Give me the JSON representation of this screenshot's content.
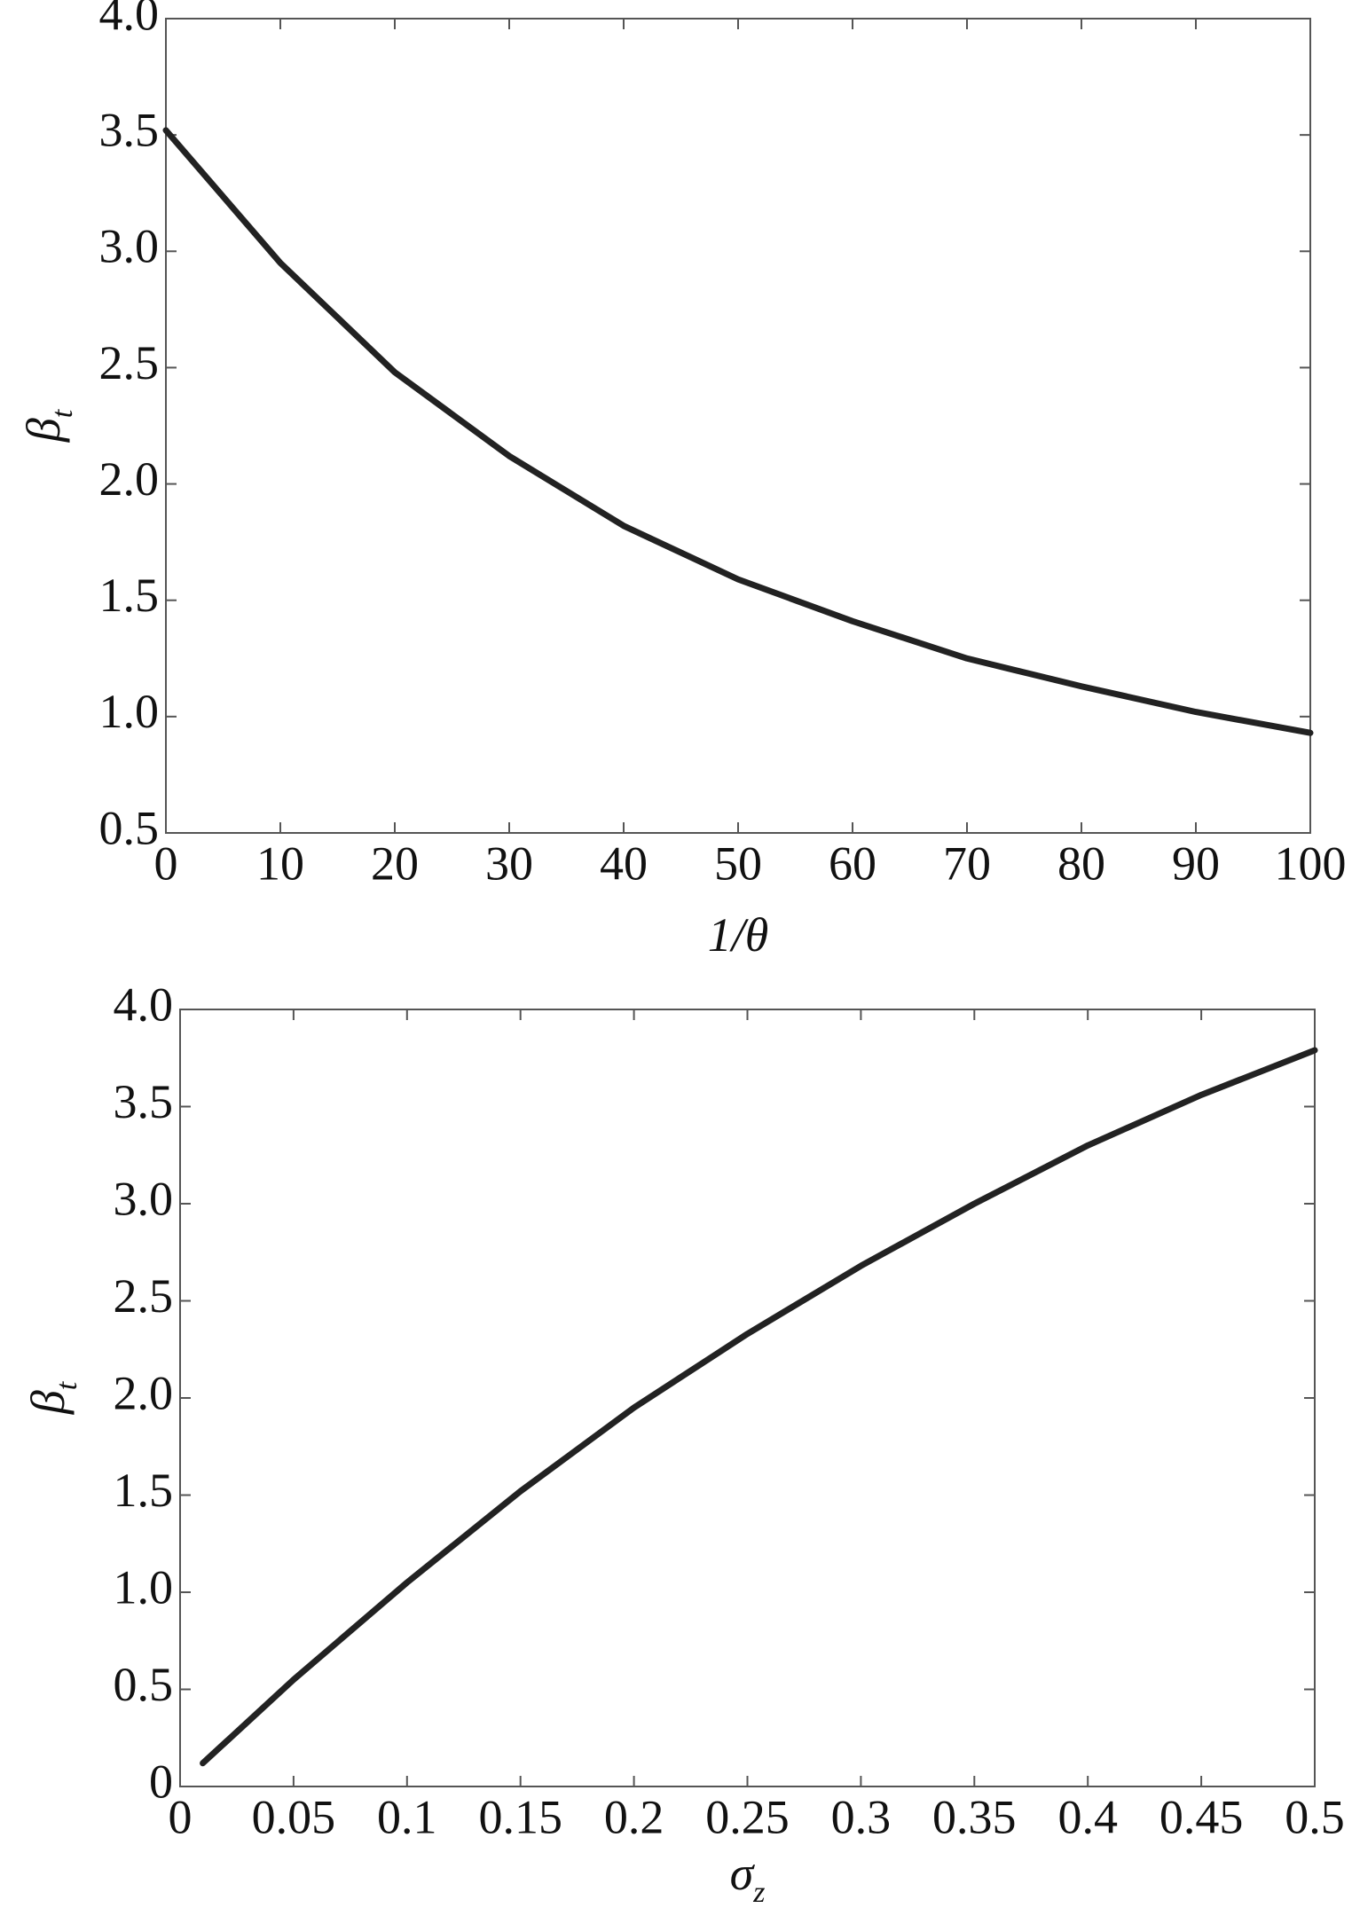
{
  "chart_data": [
    {
      "type": "line",
      "x_label": "1/θ",
      "y_label": "β",
      "y_label_sub": "t",
      "x": [
        0,
        10,
        20,
        30,
        40,
        50,
        60,
        70,
        80,
        90,
        100
      ],
      "series": [
        {
          "color": "#222222",
          "values": [
            3.52,
            2.95,
            2.48,
            2.12,
            1.82,
            1.59,
            1.41,
            1.25,
            1.13,
            1.02,
            0.93
          ]
        }
      ],
      "xlim": [
        0,
        100
      ],
      "xticks": [
        0,
        10,
        20,
        30,
        40,
        50,
        60,
        70,
        80,
        90,
        100
      ],
      "ylim": [
        0.5,
        4
      ],
      "yticks": [
        0.5,
        {
          "value": 1,
          "label": "1.0"
        },
        1.5,
        {
          "value": 2,
          "label": "2.0"
        },
        2.5,
        {
          "value": 3,
          "label": "3.0"
        },
        3.5,
        {
          "value": 4,
          "label": "4.0"
        }
      ]
    },
    {
      "type": "line",
      "x_label": "σ",
      "x_label_sub": "z",
      "y_label": "β",
      "y_label_sub": "t",
      "x": [
        0.01,
        0.05,
        0.1,
        0.15,
        0.2,
        0.25,
        0.3,
        0.35,
        0.4,
        0.45,
        0.5
      ],
      "series": [
        {
          "color": "#222222",
          "values": [
            0.12,
            0.55,
            1.05,
            1.52,
            1.95,
            2.33,
            2.68,
            3.0,
            3.3,
            3.56,
            3.79
          ]
        }
      ],
      "xlim": [
        0,
        0.5
      ],
      "xticks": [
        0,
        0.05,
        0.1,
        0.15,
        0.2,
        0.25,
        0.3,
        0.35,
        0.4,
        0.45,
        0.5
      ],
      "ylim": [
        0,
        4
      ],
      "yticks": [
        0,
        0.5,
        {
          "value": 1,
          "label": "1.0"
        },
        1.5,
        {
          "value": 2,
          "label": "2.0"
        },
        2.5,
        {
          "value": 3,
          "label": "3.0"
        },
        3.5,
        {
          "value": 4,
          "label": "4.0"
        }
      ]
    }
  ]
}
